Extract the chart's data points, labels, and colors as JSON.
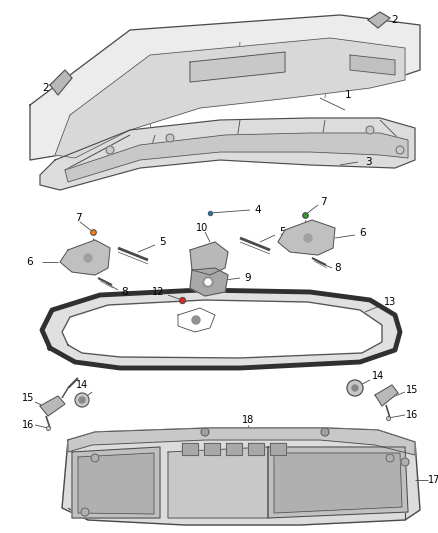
{
  "background_color": "#ffffff",
  "line_color": "#4a4a4a",
  "text_color": "#000000",
  "fig_width": 4.38,
  "fig_height": 5.33,
  "dpi": 100
}
